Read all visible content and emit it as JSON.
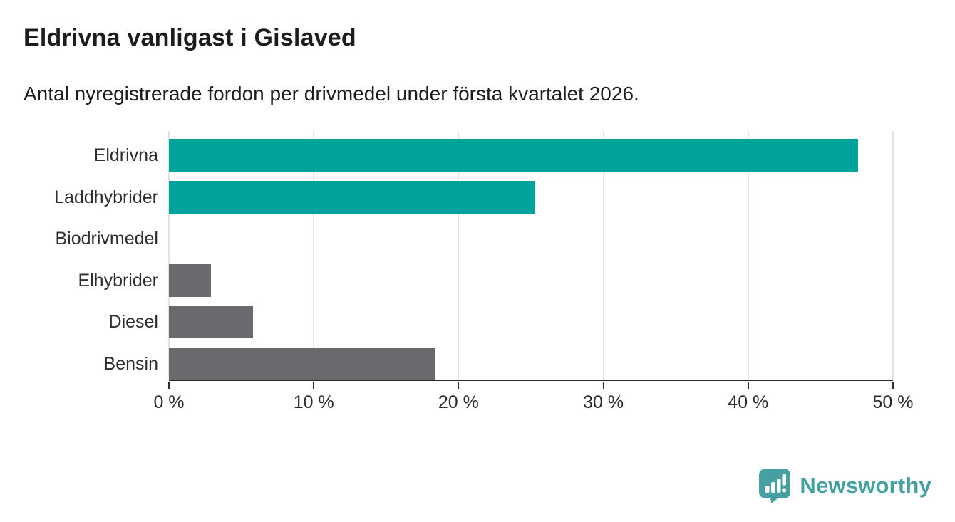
{
  "header": {
    "title": "Eldrivna vanligast i Gislaved",
    "subtitle": "Antal nyregistrerade fordon per drivmedel under första kvartalet 2026."
  },
  "chart_data": {
    "type": "bar",
    "orientation": "horizontal",
    "title": "Eldrivna vanligast i Gislaved",
    "subtitle": "Antal nyregistrerade fordon per drivmedel under första kvartalet 2026.",
    "categories": [
      "Eldrivna",
      "Laddhybrider",
      "Biodrivmedel",
      "Elhybrider",
      "Diesel",
      "Bensin"
    ],
    "values": [
      47.6,
      25.3,
      0,
      2.9,
      5.8,
      18.4
    ],
    "unit": "%",
    "bar_colors": [
      "#00a39b",
      "#00a39b",
      "#00a39b",
      "#696a6e",
      "#696a6e",
      "#696a6e"
    ],
    "highlight_color": "#00a39b",
    "default_color": "#696a6e",
    "xlim": [
      0,
      50
    ],
    "x_ticks": [
      0,
      10,
      20,
      30,
      40,
      50
    ],
    "x_tick_labels": [
      "0 %",
      "10 %",
      "20 %",
      "30 %",
      "40 %",
      "50 %"
    ],
    "grid": true,
    "gridline_color": "#e4e4e4",
    "axis_color": "#2b2b2b",
    "legend": "none"
  },
  "footer": {
    "logo_text": "Newsworthy",
    "logo_color": "#45a1a1"
  }
}
